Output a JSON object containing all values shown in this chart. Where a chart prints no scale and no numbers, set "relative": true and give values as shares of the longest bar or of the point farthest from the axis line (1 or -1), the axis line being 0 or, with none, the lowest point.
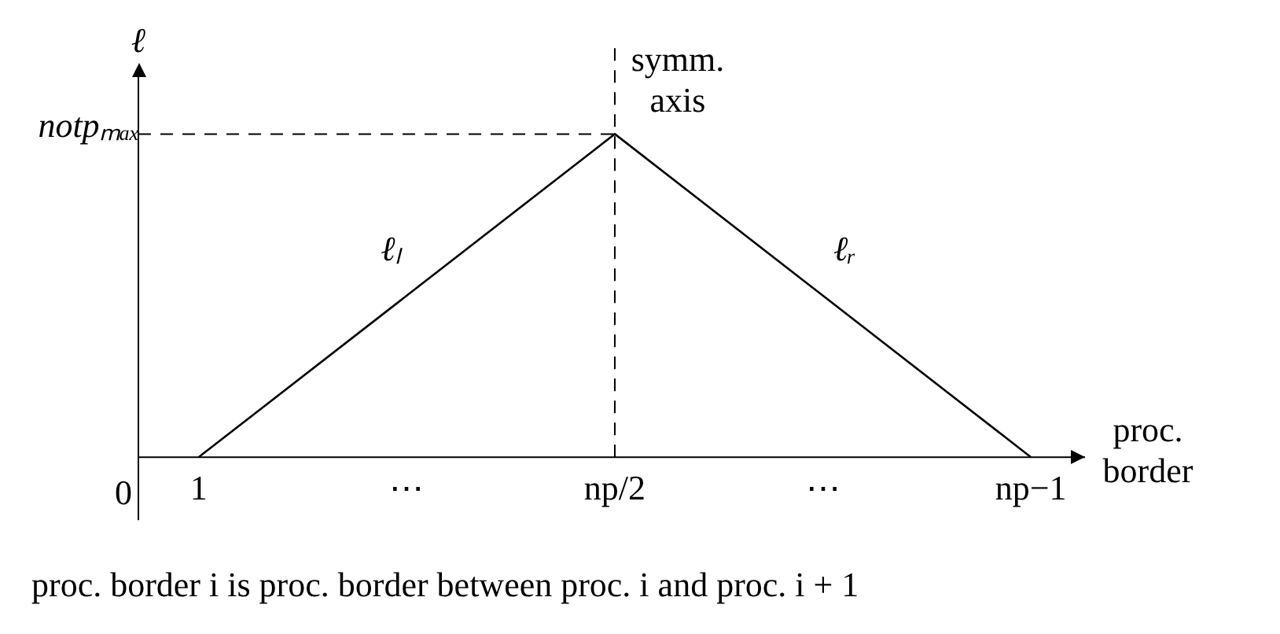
{
  "chart_data": {
    "type": "line",
    "categories": [
      "1",
      "⋯",
      "np/2",
      "⋯",
      "np−1"
    ],
    "relative": true,
    "series": [
      {
        "color": "#000000",
        "values": [
          0,
          0.5,
          1,
          0.5,
          0
        ]
      }
    ],
    "xlabel": "proc. border",
    "ylabel": "ℓ",
    "ref_lines": [
      {
        "axis": "y",
        "value": 1,
        "label": "notpₘₐₓ",
        "line_style": "dashed",
        "color": "#000000"
      },
      {
        "axis": "x",
        "value": "np/2",
        "label": "symm. axis",
        "line_style": "dashed",
        "color": "#000000"
      }
    ],
    "annotations": [
      {
        "text": "ℓₗ",
        "x": "⋯",
        "y": 0.5
      },
      "ℓᵣ",
      "0",
      "proc. border i is proc. border between proc. i and proc. i + 1"
    ],
    "grid": false,
    "legend": false,
    "marker": "none",
    "line_style": "solid"
  }
}
